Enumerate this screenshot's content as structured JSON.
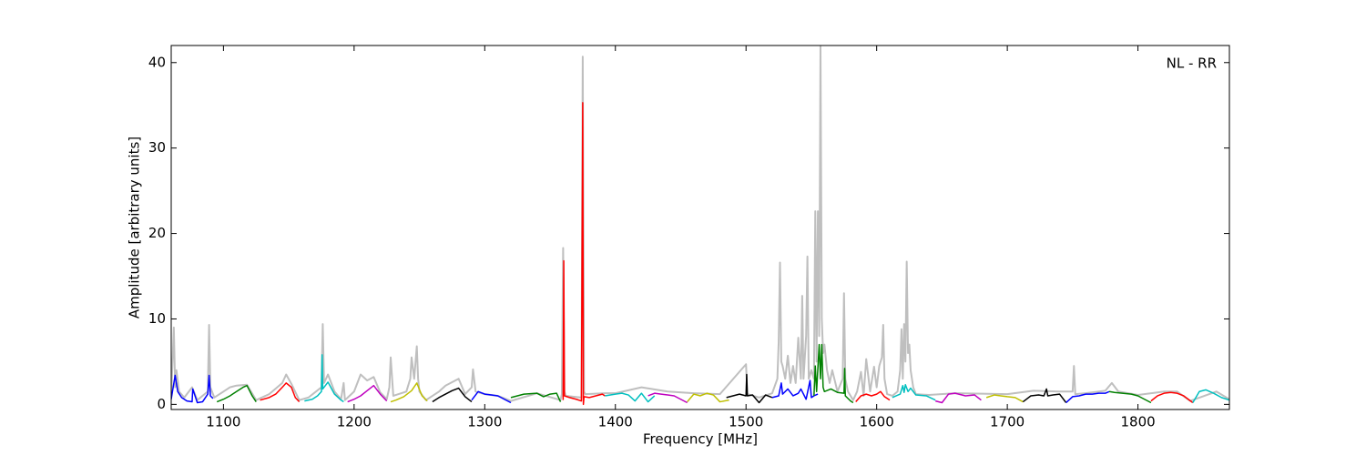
{
  "chart_data": {
    "type": "line",
    "annotation": "NL - RR",
    "x_label": "Frequency [MHz]",
    "y_label": "Amplitude [arbitrary units]",
    "xlim": [
      1060,
      1870
    ],
    "ylim": [
      -0.6,
      42
    ],
    "xticks": [
      1100,
      1200,
      1300,
      1400,
      1500,
      1600,
      1700,
      1800
    ],
    "yticks": [
      0,
      10,
      20,
      30,
      40
    ],
    "series": [
      {
        "color": "#bfbfbf",
        "x": [
          1060,
          1062,
          1063,
          1064,
          1066,
          1070,
          1076,
          1080,
          1088,
          1089,
          1090,
          1093,
          1100,
          1105,
          1110,
          1118,
          1125,
          1135,
          1145,
          1148,
          1152,
          1158,
          1165,
          1175,
          1176,
          1177,
          1180,
          1185,
          1190,
          1192,
          1193,
          1200,
          1205,
          1210,
          1215,
          1220,
          1225,
          1227,
          1228,
          1230,
          1240,
          1243,
          1244,
          1246,
          1248,
          1249,
          1250,
          1255,
          1265,
          1270,
          1275,
          1280,
          1285,
          1290,
          1291,
          1293,
          1300,
          1310,
          1320,
          1340,
          1358,
          1359,
          1360,
          1361,
          1362,
          1374,
          1375,
          1376,
          1377,
          1392,
          1400,
          1420,
          1440,
          1460,
          1480,
          1500,
          1501,
          1510,
          1520,
          1524,
          1525,
          1526,
          1527,
          1528,
          1530,
          1532,
          1534,
          1536,
          1538,
          1540,
          1542,
          1543,
          1544,
          1546,
          1547,
          1548,
          1550,
          1552,
          1553,
          1554,
          1555,
          1556,
          1557,
          1558,
          1559,
          1560,
          1562,
          1564,
          1566,
          1570,
          1574,
          1575,
          1576,
          1578,
          1582,
          1585,
          1588,
          1590,
          1592,
          1595,
          1598,
          1600,
          1602,
          1604,
          1605,
          1606,
          1608,
          1612,
          1616,
          1618,
          1619,
          1620,
          1621,
          1622,
          1623,
          1624,
          1625,
          1626,
          1628,
          1630,
          1640,
          1660,
          1700,
          1720,
          1740,
          1750,
          1751,
          1752,
          1760,
          1775,
          1780,
          1785,
          1800,
          1820,
          1830,
          1840,
          1860,
          1870
        ],
        "values": [
          1,
          9,
          2,
          4,
          1.5,
          0.8,
          2,
          0.5,
          1.5,
          9.3,
          2,
          0.8,
          1.5,
          2,
          2.2,
          2.3,
          0.5,
          1.2,
          2.5,
          3.5,
          2.4,
          0.5,
          0.8,
          2,
          9.4,
          2.5,
          3.5,
          1.5,
          0.6,
          2.5,
          0.5,
          1.5,
          3.5,
          2.8,
          3.2,
          1.4,
          0.6,
          2,
          5.5,
          1,
          1.5,
          3,
          5.5,
          3,
          6.8,
          3,
          1.5,
          0.5,
          1.5,
          2.2,
          2.6,
          3,
          1.2,
          2,
          4.1,
          1.5,
          1.2,
          1.0,
          0.4,
          1.3,
          0.5,
          1.2,
          18.3,
          1.5,
          1,
          0.8,
          40.7,
          1.5,
          1.2,
          1.3,
          1.3,
          2,
          1.5,
          1.3,
          1.2,
          4.7,
          1.2,
          0.8,
          1.3,
          3,
          7.3,
          16.6,
          5,
          4.5,
          3,
          5.7,
          2.5,
          4.5,
          2.5,
          7.8,
          3,
          12.7,
          3,
          8,
          17.3,
          3,
          4,
          3,
          22.6,
          5,
          22.6,
          8,
          42,
          10,
          6,
          7,
          4,
          2.5,
          4,
          1.5,
          3,
          13,
          3,
          1.5,
          0.5,
          1.5,
          3.8,
          1,
          5.3,
          1.5,
          4.4,
          2,
          4.5,
          5.5,
          9.3,
          3,
          1.2,
          1,
          1.5,
          4,
          8.8,
          3,
          9.4,
          5,
          16.7,
          6,
          7,
          4,
          2,
          1.2,
          1.1,
          1.3,
          1.2,
          1.6,
          1.5,
          1.5,
          4.5,
          1.2,
          1.3,
          1.6,
          2.5,
          1.5,
          1.1,
          1.5,
          1.5,
          0.4,
          1.5,
          0.6
        ]
      },
      {
        "color": "#0000ff",
        "x": [
          1060,
          1063,
          1065,
          1068,
          1072,
          1076,
          1076.5,
          1080,
          1084,
          1088,
          1089,
          1090,
          1092
        ],
        "values": [
          0.6,
          3.4,
          1.5,
          0.8,
          0.4,
          0.3,
          1.8,
          0.2,
          0.3,
          1.2,
          3.4,
          1.0,
          0.7
        ]
      },
      {
        "color": "#008000",
        "x": [
          1095,
          1100,
          1105,
          1110,
          1115,
          1118,
          1122,
          1125
        ],
        "values": [
          0.3,
          0.6,
          1.0,
          1.5,
          2.0,
          2.2,
          1.0,
          0.3
        ]
      },
      {
        "color": "#ff0000",
        "x": [
          1128,
          1135,
          1140,
          1145,
          1148,
          1152,
          1155,
          1158
        ],
        "values": [
          0.5,
          0.8,
          1.2,
          2.0,
          2.5,
          2.0,
          0.8,
          0.3
        ]
      },
      {
        "color": "#00bfbf",
        "x": [
          1162,
          1168,
          1172,
          1175,
          1175.5,
          1176,
          1180,
          1185,
          1190,
          1192
        ],
        "values": [
          0.4,
          0.6,
          1.0,
          1.5,
          5.8,
          1.8,
          2.6,
          1.2,
          0.5,
          0.3
        ]
      },
      {
        "color": "#bf00bf",
        "x": [
          1195,
          1200,
          1205,
          1210,
          1215,
          1220,
          1225
        ],
        "values": [
          0.3,
          0.6,
          1.0,
          1.6,
          2.2,
          1.2,
          0.4
        ]
      },
      {
        "color": "#bfbf00",
        "x": [
          1228,
          1232,
          1238,
          1244,
          1248,
          1252,
          1256
        ],
        "values": [
          0.3,
          0.5,
          0.9,
          1.6,
          2.5,
          1.0,
          0.4
        ]
      },
      {
        "color": "#000000",
        "x": [
          1260,
          1265,
          1270,
          1275,
          1280,
          1285,
          1290
        ],
        "values": [
          0.3,
          0.8,
          1.2,
          1.6,
          1.9,
          0.9,
          0.3
        ]
      },
      {
        "color": "#0000ff",
        "x": [
          1290,
          1295,
          1300,
          1305,
          1310,
          1315,
          1320
        ],
        "values": [
          0.5,
          1.5,
          1.2,
          1.1,
          1.0,
          0.6,
          0.2
        ]
      },
      {
        "color": "#008000",
        "x": [
          1320,
          1330,
          1340,
          1345,
          1350,
          1355,
          1358
        ],
        "values": [
          0.8,
          1.2,
          1.3,
          0.9,
          1.2,
          1.3,
          0.3
        ]
      },
      {
        "color": "#ff0000",
        "x": [
          1360,
          1360.5,
          1361,
          1365,
          1370,
          1374,
          1375,
          1375.5,
          1376,
          1380,
          1385,
          1390,
          1392
        ],
        "values": [
          0.5,
          16.8,
          1.0,
          0.8,
          0.6,
          0.4,
          35.3,
          0,
          0.9,
          0.8,
          1.0,
          1.2,
          1.0
        ]
      },
      {
        "color": "#00bfbf",
        "x": [
          1392,
          1400,
          1405,
          1410,
          1415,
          1420,
          1425,
          1430
        ],
        "values": [
          1.0,
          1.2,
          1.3,
          1.1,
          0.4,
          1.3,
          0.3,
          1.0
        ]
      },
      {
        "color": "#bf00bf",
        "x": [
          1425,
          1430,
          1435,
          1440,
          1445,
          1450,
          1455
        ],
        "values": [
          1.0,
          1.3,
          1.2,
          1.1,
          1.0,
          0.6,
          0.2
        ]
      },
      {
        "color": "#bfbf00",
        "x": [
          1455,
          1460,
          1465,
          1470,
          1475,
          1480,
          1487
        ],
        "values": [
          0.3,
          1.2,
          1.0,
          1.3,
          1.1,
          0.3,
          0.5
        ]
      },
      {
        "color": "#000000",
        "x": [
          1485,
          1490,
          1495,
          1500,
          1500.5,
          1501,
          1505,
          1510,
          1515,
          1520
        ],
        "values": [
          0.8,
          1.0,
          1.2,
          1.0,
          3.5,
          1.0,
          1.1,
          0.2,
          1.1,
          0.8
        ]
      },
      {
        "color": "#0000ff",
        "x": [
          1520,
          1525,
          1527,
          1528,
          1532,
          1536,
          1540,
          1542,
          1546,
          1549,
          1550,
          1552,
          1555
        ],
        "values": [
          0.8,
          1.0,
          2.5,
          1.2,
          1.8,
          1.0,
          1.3,
          1.8,
          0.6,
          2.8,
          0.8,
          1.0,
          1.2
        ]
      },
      {
        "color": "#008000",
        "x": [
          1552,
          1553,
          1554,
          1556,
          1557,
          1558,
          1559,
          1560,
          1565,
          1570,
          1575,
          1575.5,
          1576,
          1580,
          1582
        ],
        "values": [
          1.0,
          4.5,
          1.5,
          7.0,
          3.0,
          7.0,
          2.0,
          1.5,
          1.8,
          1.4,
          1.3,
          4.2,
          1.0,
          0.4,
          0.2
        ]
      },
      {
        "color": "#ff0000",
        "x": [
          1584,
          1588,
          1592,
          1596,
          1600,
          1603,
          1606,
          1610
        ],
        "values": [
          0.3,
          1.0,
          1.2,
          1.0,
          1.2,
          1.5,
          0.9,
          0.5
        ]
      },
      {
        "color": "#00bfbf",
        "x": [
          1612,
          1618,
          1620,
          1621,
          1622,
          1624,
          1626,
          1630,
          1638,
          1645
        ],
        "values": [
          0.8,
          1.2,
          2.2,
          1.4,
          2.3,
          1.5,
          1.9,
          1.1,
          1.0,
          0.5
        ]
      },
      {
        "color": "#bf00bf",
        "x": [
          1645,
          1650,
          1655,
          1660,
          1668,
          1675,
          1680
        ],
        "values": [
          0.4,
          0.2,
          1.2,
          1.3,
          1.0,
          1.1,
          0.5
        ]
      },
      {
        "color": "#bfbf00",
        "x": [
          1684,
          1690,
          1695,
          1700,
          1706,
          1712
        ],
        "values": [
          0.8,
          1.1,
          1.0,
          0.9,
          0.8,
          0.3
        ]
      },
      {
        "color": "#000000",
        "x": [
          1712,
          1718,
          1724,
          1728,
          1730,
          1731,
          1735,
          1740,
          1745
        ],
        "values": [
          0.3,
          1.0,
          1.1,
          1.0,
          1.8,
          1.0,
          1.1,
          1.2,
          0.2
        ]
      },
      {
        "color": "#0000ff",
        "x": [
          1745,
          1750,
          1755,
          1760,
          1765,
          1770,
          1775,
          1778
        ],
        "values": [
          0.2,
          0.9,
          1.0,
          1.2,
          1.2,
          1.3,
          1.3,
          1.5
        ]
      },
      {
        "color": "#008000",
        "x": [
          1778,
          1782,
          1788,
          1795,
          1800,
          1805,
          1810
        ],
        "values": [
          1.5,
          1.4,
          1.3,
          1.2,
          1.0,
          0.6,
          0.2
        ]
      },
      {
        "color": "#ff0000",
        "x": [
          1810,
          1815,
          1820,
          1825,
          1830,
          1835,
          1842
        ],
        "values": [
          0.4,
          1.0,
          1.3,
          1.4,
          1.3,
          1.0,
          0.2
        ]
      },
      {
        "color": "#00bfbf",
        "x": [
          1842,
          1847,
          1852,
          1858,
          1864,
          1870
        ],
        "values": [
          0.2,
          1.5,
          1.7,
          1.3,
          0.8,
          0.5
        ]
      }
    ]
  }
}
